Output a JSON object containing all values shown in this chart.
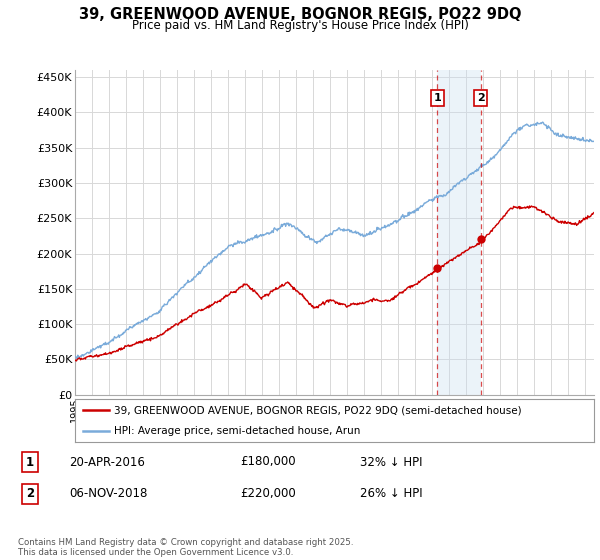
{
  "title": "39, GREENWOOD AVENUE, BOGNOR REGIS, PO22 9DQ",
  "subtitle": "Price paid vs. HM Land Registry's House Price Index (HPI)",
  "ylabel_ticks": [
    "£0",
    "£50K",
    "£100K",
    "£150K",
    "£200K",
    "£250K",
    "£300K",
    "£350K",
    "£400K",
    "£450K"
  ],
  "ytick_values": [
    0,
    50000,
    100000,
    150000,
    200000,
    250000,
    300000,
    350000,
    400000,
    450000
  ],
  "ylim": [
    0,
    460000
  ],
  "xlim_start": 1995.0,
  "xlim_end": 2025.5,
  "marker1_date": 2016.3,
  "marker2_date": 2018.85,
  "sale1_price": 180000,
  "sale2_price": 220000,
  "legend_red": "39, GREENWOOD AVENUE, BOGNOR REGIS, PO22 9DQ (semi-detached house)",
  "legend_blue": "HPI: Average price, semi-detached house, Arun",
  "footer": "Contains HM Land Registry data © Crown copyright and database right 2025.\nThis data is licensed under the Open Government Licence v3.0.",
  "red_color": "#cc0000",
  "blue_color": "#7aabda",
  "shade_color": "#c8ddf0",
  "background_color": "#ffffff",
  "grid_color": "#d8d8d8"
}
